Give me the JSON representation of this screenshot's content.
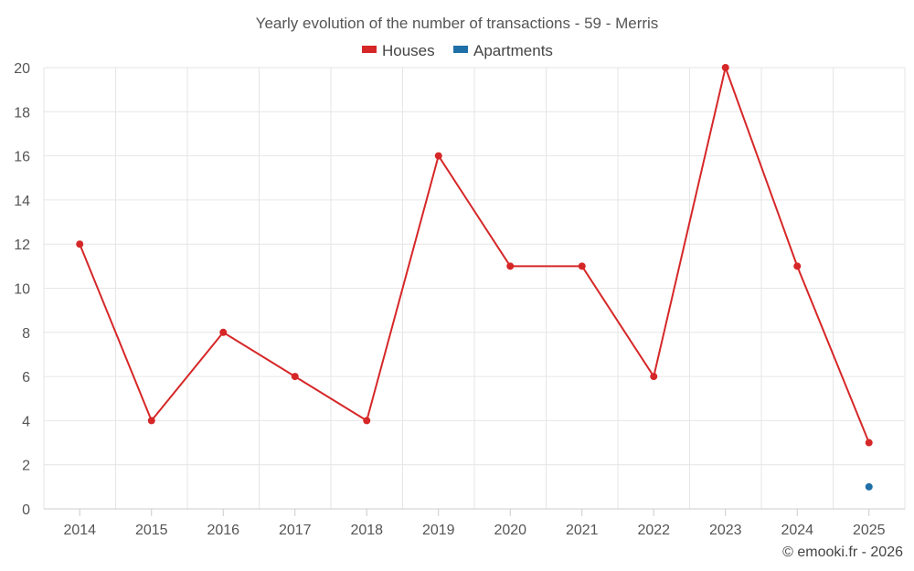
{
  "chart_data": {
    "type": "line",
    "title": "Yearly evolution of the number of transactions - 59 - Merris",
    "categories": [
      "2014",
      "2015",
      "2016",
      "2017",
      "2018",
      "2019",
      "2020",
      "2021",
      "2022",
      "2023",
      "2024",
      "2025"
    ],
    "series": [
      {
        "name": "Houses",
        "color": "#d62728",
        "values": [
          12,
          4,
          8,
          6,
          4,
          16,
          11,
          11,
          6,
          20,
          11,
          3
        ]
      },
      {
        "name": "Apartments",
        "color": "#1f6fa8",
        "values": [
          null,
          null,
          null,
          null,
          null,
          null,
          null,
          null,
          null,
          null,
          null,
          1
        ]
      }
    ],
    "ylim": [
      0,
      20
    ],
    "yticks": [
      "0",
      "2",
      "4",
      "6",
      "8",
      "10",
      "12",
      "14",
      "16",
      "18",
      "20"
    ],
    "xlabel": "",
    "ylabel": "",
    "grid": true,
    "legend_position": "top-center"
  },
  "credit": "© emooki.fr - 2026"
}
